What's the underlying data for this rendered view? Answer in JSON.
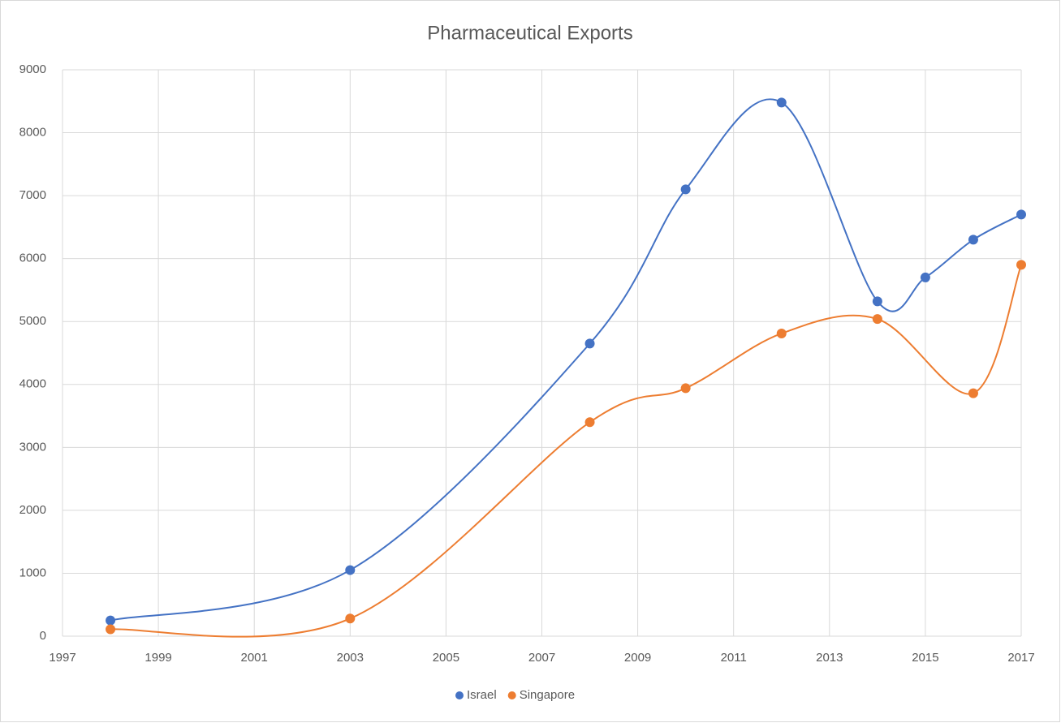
{
  "chart_data": {
    "type": "scatter_smooth",
    "title": "Pharmaceutical Exports",
    "xlim": [
      1997,
      2017
    ],
    "xticks": [
      1997,
      1999,
      2001,
      2003,
      2005,
      2007,
      2009,
      2011,
      2013,
      2015,
      2017
    ],
    "ylim": [
      0,
      9000
    ],
    "yticks": [
      0,
      1000,
      2000,
      3000,
      4000,
      5000,
      6000,
      7000,
      8000,
      9000
    ],
    "grid": true,
    "legend": "bottom",
    "series": [
      {
        "name": "Israel",
        "color": "#4472c4",
        "x": [
          1998,
          2003,
          2008,
          2010,
          2012,
          2014,
          2015,
          2016,
          2017
        ],
        "values": [
          250,
          1050,
          4650,
          7100,
          8480,
          5320,
          5700,
          6300,
          6700
        ]
      },
      {
        "name": "Singapore",
        "color": "#ed7d31",
        "x": [
          1998,
          2003,
          2008,
          2010,
          2012,
          2014,
          2016,
          2017
        ],
        "values": [
          110,
          280,
          3400,
          3940,
          4810,
          5040,
          3860,
          5900
        ]
      }
    ]
  }
}
